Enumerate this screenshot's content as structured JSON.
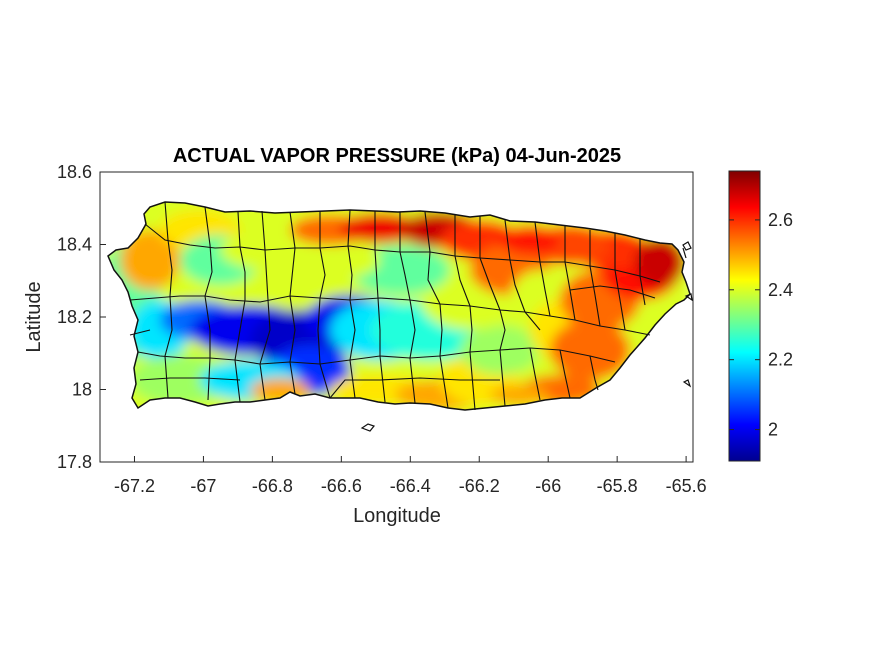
{
  "chart_data": {
    "type": "heatmap",
    "title": "ACTUAL VAPOR PRESSURE (kPa) 04-Jun-2025",
    "xlabel": "Longitude",
    "ylabel": "Latitude",
    "xlim": [
      -67.3,
      -65.58
    ],
    "ylim": [
      17.8,
      18.6
    ],
    "xticks": [
      -67.2,
      -67,
      -66.8,
      -66.6,
      -66.4,
      -66.2,
      -66,
      -65.8,
      -65.6
    ],
    "xtick_labels": [
      "-67.2",
      "-67",
      "-66.8",
      "-66.6",
      "-66.4",
      "-66.2",
      "-66",
      "-65.8",
      "-65.6"
    ],
    "yticks": [
      17.8,
      18,
      18.2,
      18.4,
      18.6
    ],
    "ytick_labels": [
      "17.8",
      "18",
      "18.2",
      "18.4",
      "18.6"
    ],
    "colorbar": {
      "colormap": "jet",
      "range": [
        1.91,
        2.74
      ],
      "ticks": [
        2,
        2.2,
        2.4,
        2.6
      ],
      "tick_labels": [
        "2",
        "2.2",
        "2.4",
        "2.6"
      ]
    },
    "region": "Puerto Rico",
    "field_description": "Vapor pressure high (red, ~2.6-2.7) along north and east coasts, lowest (blue, ~1.95-2.1) along central mountain range",
    "grid": false
  }
}
